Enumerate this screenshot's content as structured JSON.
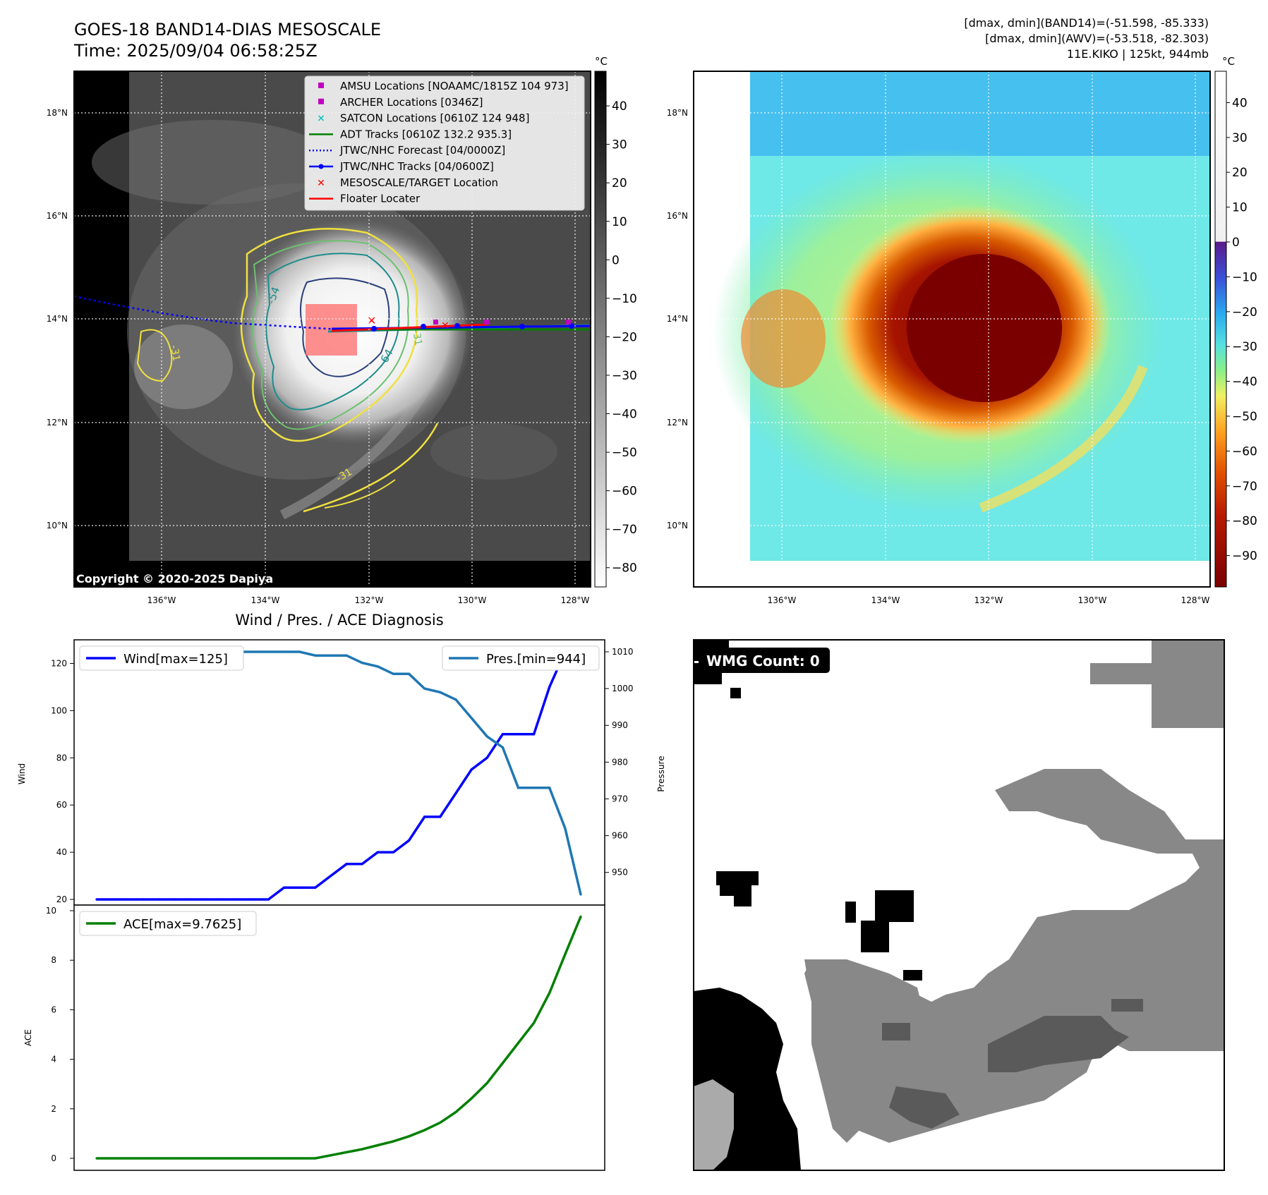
{
  "header": {
    "title_line1": "GOES-18 BAND14-DIAS MESOSCALE",
    "title_line2": "Time: 2025/09/04 06:58:25Z",
    "stats_line1": "[dmax, dmin](BAND14)=(-51.598, -85.333)",
    "stats_line2": "[dmax, dmin](AWV)=(-53.518, -82.303)",
    "stats_line3": "11E.KIKO | 125kt, 944mb"
  },
  "maps": {
    "lat_labels": [
      "18°N",
      "16°N",
      "14°N",
      "12°N",
      "10°N"
    ],
    "lon_labels": [
      "136°W",
      "134°W",
      "132°W",
      "130°W",
      "128°W"
    ],
    "copyright": "Copyright © 2020-2025 Dapiya",
    "contour_labels": [
      "-54",
      "-31",
      "-64",
      "-31",
      "-31"
    ],
    "colors": {
      "amsu": "#c000c0",
      "archer": "#c000c0",
      "satcon": "#00bfbf",
      "adt": "#008000",
      "forecast": "#0000ff",
      "tracks": "#0000ff",
      "target": "#ff0000",
      "floater": "#ff0000",
      "contour_yellow": "#f0e040",
      "contour_green": "#6cc070",
      "contour_teal": "#1e8c8c",
      "contour_navy": "#2a3f7a"
    }
  },
  "legend": {
    "items": [
      {
        "label": "AMSU Locations [NOAAMC/1815Z 104 973]",
        "marker": "square",
        "color": "#c000c0"
      },
      {
        "label": "ARCHER Locations [0346Z]",
        "marker": "square",
        "color": "#c000c0"
      },
      {
        "label": "SATCON Locations [0610Z 124 948]",
        "marker": "x",
        "color": "#00bfbf"
      },
      {
        "label": "ADT Tracks [0610Z 132.2 935.3]",
        "marker": "line",
        "color": "#008000"
      },
      {
        "label": "JTWC/NHC Forecast [04/0000Z]",
        "marker": "dotted",
        "color": "#0000ff"
      },
      {
        "label": "JTWC/NHC Tracks [04/0600Z]",
        "marker": "line-dot",
        "color": "#0000ff"
      },
      {
        "label": "MESOSCALE/TARGET Location",
        "marker": "x",
        "color": "#ff0000"
      },
      {
        "label": "Floater Locater",
        "marker": "line",
        "color": "#ff0000"
      }
    ]
  },
  "colorbar_ir": {
    "unit": "°C",
    "ticks": [
      "40",
      "30",
      "20",
      "10",
      "0",
      "−10",
      "−20",
      "−30",
      "−40",
      "−50",
      "−60",
      "−70",
      "−80"
    ],
    "range": [
      -85,
      49
    ]
  },
  "colorbar_enh": {
    "unit": "°C",
    "ticks": [
      "40",
      "30",
      "20",
      "10",
      "0",
      "−10",
      "−20",
      "−30",
      "−40",
      "−50",
      "−60",
      "−70",
      "−80",
      "−90"
    ],
    "range": [
      -99,
      49
    ]
  },
  "diagnosis": {
    "title": "Wind / Pres. / ACE Diagnosis",
    "wind_ylabel": "Wind",
    "pressure_ylabel": "Pressure",
    "ace_ylabel": "ACE",
    "wind_legend": "Wind[max=125]",
    "pressure_legend": "Pres.[min=944]",
    "ace_legend": "ACE[max=9.7625]",
    "wind_color": "#0000ff",
    "pressure_color": "#1f77b4",
    "ace_color": "#008000"
  },
  "wmg": {
    "label": "WMG Count: 0"
  },
  "chart_data": [
    {
      "type": "line",
      "x": [
        0,
        1,
        2,
        3,
        4,
        5,
        6,
        7,
        8,
        9,
        10,
        11,
        12,
        13,
        14,
        15,
        16,
        17,
        18,
        19,
        20,
        21,
        22,
        23,
        24,
        25,
        26,
        27,
        28,
        29,
        30,
        31
      ],
      "series": [
        {
          "name": "Wind[max=125]",
          "axis": "left",
          "values": [
            20,
            20,
            20,
            20,
            20,
            20,
            20,
            20,
            20,
            20,
            20,
            20,
            25,
            25,
            25,
            30,
            35,
            35,
            40,
            40,
            45,
            55,
            55,
            65,
            75,
            80,
            90,
            90,
            90,
            110,
            125,
            125
          ]
        },
        {
          "name": "Pres.[min=944]",
          "axis": "right",
          "values": [
            1010,
            1010,
            1010,
            1010,
            1010,
            1010,
            1010,
            1010,
            1010,
            1010,
            1010,
            1010,
            1010,
            1010,
            1009,
            1009,
            1009,
            1007,
            1006,
            1004,
            1004,
            1000,
            999,
            997,
            992,
            987,
            984,
            973,
            973,
            973,
            962,
            944
          ]
        }
      ],
      "ylim_left": [
        20,
        130
      ],
      "yticks_left": [
        20,
        40,
        60,
        80,
        100,
        120
      ],
      "ylim_right": [
        944,
        1010
      ],
      "yticks_right": [
        950,
        960,
        970,
        980,
        990,
        1000,
        1010
      ],
      "ylabel": "Wind",
      "ylabel_right": "Pressure"
    },
    {
      "type": "line",
      "x": [
        0,
        1,
        2,
        3,
        4,
        5,
        6,
        7,
        8,
        9,
        10,
        11,
        12,
        13,
        14,
        15,
        16,
        17,
        18,
        19,
        20,
        21,
        22,
        23,
        24,
        25,
        26,
        27,
        28,
        29,
        30,
        31
      ],
      "series": [
        {
          "name": "ACE[max=9.7625]",
          "values": [
            0,
            0,
            0,
            0,
            0,
            0,
            0,
            0,
            0,
            0,
            0,
            0,
            0,
            0,
            0,
            0.1225,
            0.245,
            0.3675,
            0.5275,
            0.6875,
            0.89,
            1.14,
            1.4425,
            1.865,
            2.415,
            3.0375,
            3.8475,
            4.6575,
            5.4675,
            6.6775,
            8.24,
            9.7625
          ]
        }
      ],
      "ylim": [
        -0.5,
        10
      ],
      "yticks": [
        0,
        2,
        4,
        6,
        8,
        10
      ],
      "ylabel": "ACE"
    }
  ]
}
